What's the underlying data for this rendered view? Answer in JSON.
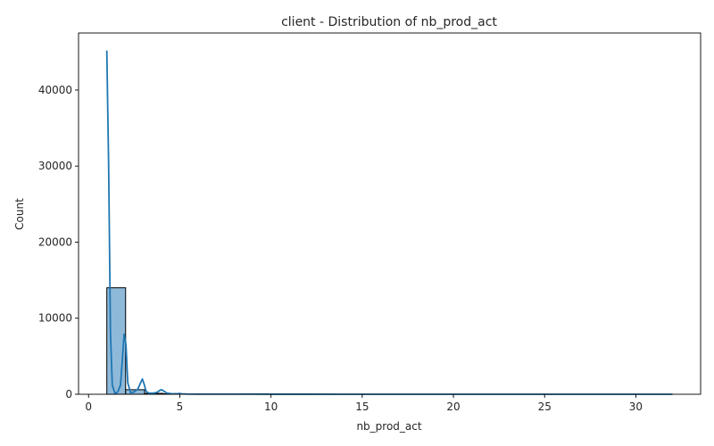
{
  "chart_data": {
    "type": "bar",
    "title": "client - Distribution of nb_prod_act",
    "xlabel": "nb_prod_act",
    "ylabel": "Count",
    "xlim": [
      -0.55,
      33.55
    ],
    "ylim": [
      0,
      47500
    ],
    "xticks": [
      0,
      5,
      10,
      15,
      20,
      25,
      30
    ],
    "yticks": [
      0,
      10000,
      20000,
      30000,
      40000
    ],
    "grid": false,
    "colors": {
      "bar_fill": "#8fb9d9",
      "bar_edge": "#000000",
      "kde_line": "#1f77b4",
      "axis": "#000000"
    },
    "bins": [
      {
        "x0": 1.0,
        "x1": 2.03,
        "count": 14000
      },
      {
        "x0": 2.03,
        "x1": 3.07,
        "count": 600
      },
      {
        "x0": 3.07,
        "x1": 4.1,
        "count": 120
      },
      {
        "x0": 4.1,
        "x1": 5.13,
        "count": 60
      },
      {
        "x0": 5.13,
        "x1": 6.17,
        "count": 25
      },
      {
        "x0": 6.17,
        "x1": 7.2,
        "count": 10
      },
      {
        "x0": 7.2,
        "x1": 8.23,
        "count": 5
      },
      {
        "x0": 8.23,
        "x1": 9.27,
        "count": 5
      },
      {
        "x0": 9.27,
        "x1": 10.3,
        "count": 2
      },
      {
        "x0": 10.3,
        "x1": 11.33,
        "count": 1
      },
      {
        "x0": 11.33,
        "x1": 12.37,
        "count": 1
      },
      {
        "x0": 12.37,
        "x1": 13.4,
        "count": 0
      },
      {
        "x0": 13.4,
        "x1": 14.43,
        "count": 0
      },
      {
        "x0": 14.43,
        "x1": 15.47,
        "count": 0
      },
      {
        "x0": 15.47,
        "x1": 16.5,
        "count": 0
      },
      {
        "x0": 16.5,
        "x1": 17.53,
        "count": 0
      },
      {
        "x0": 17.53,
        "x1": 18.57,
        "count": 0
      },
      {
        "x0": 18.57,
        "x1": 19.6,
        "count": 0
      },
      {
        "x0": 19.6,
        "x1": 20.63,
        "count": 0
      },
      {
        "x0": 20.63,
        "x1": 21.67,
        "count": 0
      },
      {
        "x0": 21.67,
        "x1": 22.7,
        "count": 0
      },
      {
        "x0": 22.7,
        "x1": 23.73,
        "count": 0
      },
      {
        "x0": 23.73,
        "x1": 24.77,
        "count": 0
      },
      {
        "x0": 24.77,
        "x1": 25.8,
        "count": 0
      },
      {
        "x0": 25.8,
        "x1": 26.83,
        "count": 0
      },
      {
        "x0": 26.83,
        "x1": 27.87,
        "count": 0
      },
      {
        "x0": 27.87,
        "x1": 28.9,
        "count": 0
      },
      {
        "x0": 28.9,
        "x1": 29.93,
        "count": 0
      },
      {
        "x0": 29.93,
        "x1": 30.97,
        "count": 0
      },
      {
        "x0": 30.97,
        "x1": 32.0,
        "count": 1
      }
    ],
    "kde": {
      "x": [
        1.0,
        1.1,
        1.2,
        1.3,
        1.45,
        1.6,
        1.75,
        1.85,
        1.95,
        2.05,
        2.15,
        2.3,
        2.5,
        2.7,
        2.85,
        2.95,
        3.05,
        3.15,
        3.3,
        3.55,
        3.75,
        3.9,
        4.0,
        4.1,
        4.3,
        4.6,
        4.9,
        5.0,
        5.1,
        5.4,
        6.0,
        7.0,
        8.0,
        9.0,
        10.0,
        12.0,
        15.0,
        20.0,
        25.0,
        32.0
      ],
      "y": [
        45200,
        30000,
        8000,
        1200,
        100,
        300,
        1200,
        4500,
        7900,
        6500,
        1500,
        200,
        300,
        700,
        1500,
        2000,
        1300,
        400,
        150,
        150,
        250,
        500,
        600,
        450,
        150,
        60,
        80,
        100,
        60,
        30,
        15,
        10,
        10,
        20,
        5,
        5,
        3,
        3,
        3,
        3
      ]
    }
  }
}
